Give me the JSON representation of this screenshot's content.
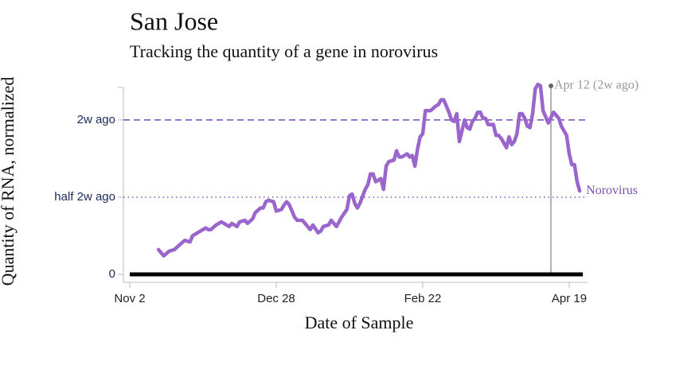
{
  "chart_data": {
    "type": "line",
    "title": "San Jose",
    "subtitle": "Tracking the quantity of a gene in norovirus",
    "x_label": "Date of Sample",
    "y_label": "Quantity of RNA, normalized",
    "xlim": [
      "Nov 2",
      "Apr 26"
    ],
    "xticks": [
      "Nov 2",
      "Dec 28",
      "Feb 22",
      "Apr 19"
    ],
    "ylim": [
      0,
      1.21
    ],
    "yticks": [
      0,
      {
        "value": 0.5,
        "label": "half 2w ago"
      },
      {
        "value": 1,
        "label": "2w ago"
      }
    ],
    "reference_lines": [
      {
        "value": 1,
        "color": "#7e57c2",
        "style": "dashed"
      },
      {
        "value": 0.5,
        "color": "#8e5cc9",
        "style": "dotted"
      }
    ],
    "annotation": {
      "x": "Apr 12",
      "label": "Apr 12 (2w ago)",
      "color": "#999999"
    },
    "series": [
      {
        "name": "Norovirus",
        "color": "#9a66cb",
        "x": [
          "Nov 13",
          "Nov 15",
          "Nov 17",
          "Nov 19",
          "Nov 21",
          "Nov 23",
          "Nov 25",
          "Nov 26",
          "Nov 28",
          "Nov 29",
          "Dec 1",
          "Dec 2",
          "Dec 3",
          "Dec 5",
          "Dec 7",
          "Dec 8",
          "Dec 10",
          "Dec 11",
          "Dec 13",
          "Dec 14",
          "Dec 16",
          "Dec 17",
          "Dec 19",
          "Dec 20",
          "Dec 22",
          "Dec 23",
          "Dec 24",
          "Dec 25",
          "Dec 27",
          "Dec 28",
          "Dec 30",
          "Dec 31",
          "Jan 1",
          "Jan 2",
          "Jan 3",
          "Jan 4",
          "Jan 5",
          "Jan 7",
          "Jan 9",
          "Jan 10",
          "Jan 11",
          "Jan 13",
          "Jan 14",
          "Jan 15",
          "Jan 17",
          "Jan 18",
          "Jan 20",
          "Jan 21",
          "Jan 22",
          "Jan 24",
          "Jan 25",
          "Jan 26",
          "Jan 27",
          "Jan 28",
          "Jan 29",
          "Jan 31",
          "Feb 1",
          "Feb 2",
          "Feb 3",
          "Feb 4",
          "Feb 6",
          "Feb 7",
          "Feb 8",
          "Feb 9",
          "Feb 11",
          "Feb 12",
          "Feb 13",
          "Feb 14",
          "Feb 16",
          "Feb 17",
          "Feb 18",
          "Feb 19",
          "Feb 20",
          "Feb 21",
          "Feb 22",
          "Feb 23",
          "Feb 24",
          "Feb 25",
          "Feb 27",
          "Feb 28",
          "Mar 1",
          "Mar 2",
          "Mar 3",
          "Mar 4",
          "Mar 5",
          "Mar 6",
          "Mar 7",
          "Mar 8",
          "Mar 10",
          "Mar 11",
          "Mar 12",
          "Mar 13",
          "Mar 14",
          "Mar 15",
          "Mar 16",
          "Mar 17",
          "Mar 18",
          "Mar 19",
          "Mar 21",
          "Mar 22",
          "Mar 23",
          "Mar 24",
          "Mar 25",
          "Mar 26",
          "Mar 27",
          "Mar 28",
          "Mar 29",
          "Mar 30",
          "Mar 31",
          "Apr 1",
          "Apr 2",
          "Apr 3",
          "Apr 4",
          "Apr 5",
          "Apr 6",
          "Apr 7",
          "Apr 8",
          "Apr 9",
          "Apr 10",
          "Apr 11",
          "Apr 13",
          "Apr 14",
          "Apr 15",
          "Apr 16",
          "Apr 18",
          "Apr 19",
          "Apr 20",
          "Apr 21",
          "Apr 22",
          "Apr 23"
        ],
        "values": [
          0.16,
          0.12,
          0.15,
          0.16,
          0.19,
          0.22,
          0.21,
          0.25,
          0.27,
          0.28,
          0.3,
          0.29,
          0.29,
          0.32,
          0.34,
          0.33,
          0.31,
          0.33,
          0.31,
          0.34,
          0.35,
          0.33,
          0.36,
          0.4,
          0.43,
          0.43,
          0.47,
          0.48,
          0.47,
          0.41,
          0.42,
          0.45,
          0.47,
          0.45,
          0.41,
          0.37,
          0.35,
          0.35,
          0.31,
          0.29,
          0.32,
          0.27,
          0.28,
          0.31,
          0.32,
          0.35,
          0.31,
          0.34,
          0.37,
          0.42,
          0.51,
          0.52,
          0.46,
          0.43,
          0.46,
          0.55,
          0.58,
          0.65,
          0.65,
          0.6,
          0.62,
          0.55,
          0.7,
          0.73,
          0.74,
          0.8,
          0.76,
          0.76,
          0.78,
          0.76,
          0.77,
          0.7,
          0.81,
          0.89,
          0.91,
          1.06,
          1.06,
          1.06,
          1.09,
          1.1,
          1.13,
          1.13,
          1.09,
          1.05,
          1.0,
          0.99,
          1.04,
          0.86,
          1.0,
          0.95,
          0.94,
          0.99,
          1.01,
          1.05,
          1.05,
          1.01,
          1.01,
          0.97,
          0.97,
          0.9,
          0.9,
          0.88,
          0.85,
          0.82,
          0.89,
          0.84,
          0.86,
          0.91,
          1.04,
          1.04,
          1.01,
          0.96,
          0.95,
          1.04,
          1.2,
          1.23,
          1.22,
          1.06,
          1.02,
          0.98,
          1.05,
          1.03,
          1.01,
          0.96,
          0.9,
          0.78,
          0.71,
          0.71,
          0.6,
          0.54
        ]
      }
    ]
  }
}
